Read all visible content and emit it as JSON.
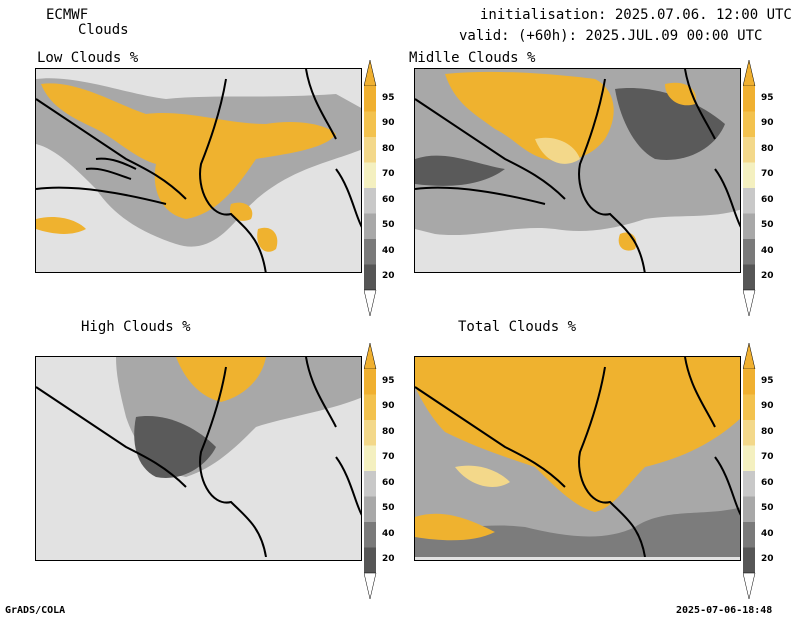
{
  "header": {
    "source": "ECMWF",
    "product": "Clouds",
    "init": "initialisation: 2025.07.06. 12:00 UTC",
    "valid": "valid: (+60h): 2025.JUL.09 00:00 UTC"
  },
  "panels": [
    {
      "title": "Low Clouds %"
    },
    {
      "title": "Midlle Clouds %"
    },
    {
      "title": "High Clouds %"
    },
    {
      "title": "Total Clouds %"
    }
  ],
  "colorbar": {
    "levels": [
      "95",
      "90",
      "80",
      "70",
      "60",
      "50",
      "40",
      "20"
    ],
    "colors": [
      "#f0b030",
      "#f3c24e",
      "#f3d88a",
      "#f4f0c0",
      "#c8c8c8",
      "#a8a8a8",
      "#7a7a7a",
      "#565656"
    ],
    "top_arrow_color": "#f0b030",
    "bottom_arrow_color": "#ffffff"
  },
  "map_colors": {
    "background": "#e2e2e2",
    "gold": "#efb22f",
    "light_gold": "#f3d88a",
    "gray_mid": "#a8a8a8",
    "gray_dark": "#5a5a5a",
    "borders": "#000000"
  },
  "footer": {
    "left": "GrADS/COLA",
    "right": "2025-07-06-18:48"
  }
}
